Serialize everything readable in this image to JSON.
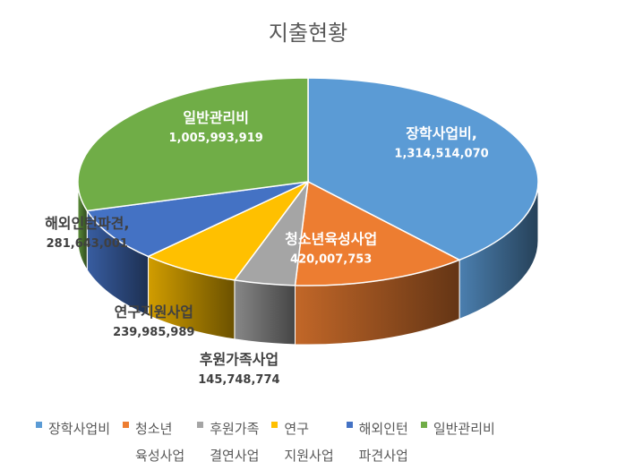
{
  "chart_data": {
    "type": "pie",
    "style": "3d",
    "title": "지출현황",
    "slices": [
      {
        "label": "장학사업비,",
        "legend": "장학사업비",
        "value": 1314514070,
        "value_text": "1,314,514,070",
        "color": "#5B9BD5"
      },
      {
        "label": "청소년육성사업",
        "legend": [
          "청소년",
          "육성사업"
        ],
        "value": 420007753,
        "value_text": "420,007,753",
        "color": "#ED7D31"
      },
      {
        "label": "후원가족사업",
        "legend": [
          "후원가족",
          "결연사업"
        ],
        "value": 145748774,
        "value_text": "145,748,774",
        "color": "#A5A5A5"
      },
      {
        "label": "연구지원사업",
        "legend": [
          "연구",
          "지원사업"
        ],
        "value": 239985989,
        "value_text": "239,985,989",
        "color": "#FFC000"
      },
      {
        "label": "해외인턴파견,",
        "legend": [
          "해외인턴",
          "파견사업"
        ],
        "value": 281643001,
        "value_text": "281,643,001",
        "color": "#4472C4"
      },
      {
        "label": "일반관리비",
        "legend": "일반관리비",
        "value": 1005993919,
        "value_text": "1,005,993,919",
        "color": "#70AD47"
      }
    ],
    "legend_position": "bottom"
  }
}
